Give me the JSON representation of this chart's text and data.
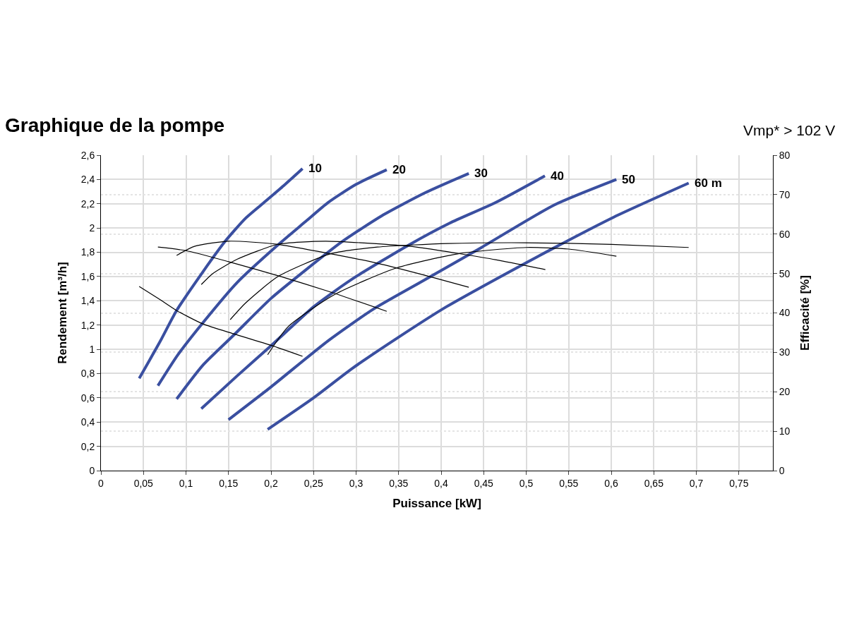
{
  "chart_data": {
    "type": "line",
    "title": "Graphique de la pompe",
    "subtitle": "Vmp* > 102 V",
    "xlabel": "Puissance [kW]",
    "ylabel": "Rendement [m³/h]",
    "y2label": "Efficacité [%]",
    "xlim": [
      0,
      0.79
    ],
    "ylim": [
      0,
      2.6
    ],
    "y2lim": [
      0,
      80
    ],
    "xticks": [
      0,
      {
        "value": 0.05,
        "label": "0,05"
      },
      {
        "value": 0.1,
        "label": "0,1"
      },
      {
        "value": 0.15,
        "label": "0,15"
      },
      {
        "value": 0.2,
        "label": "0,2"
      },
      {
        "value": 0.25,
        "label": "0,25"
      },
      {
        "value": 0.3,
        "label": "0,3"
      },
      {
        "value": 0.35,
        "label": "0,35"
      },
      {
        "value": 0.4,
        "label": "0,4"
      },
      {
        "value": 0.45,
        "label": "0,45"
      },
      {
        "value": 0.5,
        "label": "0,5"
      },
      {
        "value": 0.55,
        "label": "0,55"
      },
      {
        "value": 0.6,
        "label": "0,6"
      },
      {
        "value": 0.65,
        "label": "0,65"
      },
      {
        "value": 0.7,
        "label": "0,7"
      },
      {
        "value": 0.75,
        "label": "0,75"
      }
    ],
    "yticks": [
      0,
      {
        "value": 0.2,
        "label": "0,2"
      },
      {
        "value": 0.4,
        "label": "0,4"
      },
      {
        "value": 0.6,
        "label": "0,6"
      },
      {
        "value": 0.8,
        "label": "0,8"
      },
      1,
      {
        "value": 1.2,
        "label": "1,2"
      },
      {
        "value": 1.4,
        "label": "1,4"
      },
      {
        "value": 1.6,
        "label": "1,6"
      },
      {
        "value": 1.8,
        "label": "1,8"
      },
      2,
      {
        "value": 2.2,
        "label": "2,2"
      },
      {
        "value": 2.4,
        "label": "2,4"
      },
      {
        "value": 2.6,
        "label": "2,6"
      }
    ],
    "y2ticks": [
      0,
      10,
      20,
      30,
      40,
      50,
      60,
      70,
      80
    ],
    "grid": true,
    "marker": "none",
    "line_style": "solid",
    "series": [
      {
        "name": "10",
        "color": "#3a4fa0",
        "x": [
          0.045,
          0.07,
          0.089,
          0.12,
          0.146,
          0.17,
          0.19,
          0.215,
          0.237
        ],
        "values": [
          0.76,
          1.07,
          1.32,
          1.64,
          1.89,
          2.08,
          2.2,
          2.35,
          2.49
        ]
      },
      {
        "name": "20",
        "color": "#3a4fa0",
        "x": [
          0.067,
          0.09,
          0.12,
          0.16,
          0.208,
          0.24,
          0.267,
          0.3,
          0.336
        ],
        "values": [
          0.7,
          0.95,
          1.22,
          1.55,
          1.86,
          2.05,
          2.21,
          2.36,
          2.48
        ]
      },
      {
        "name": "30",
        "color": "#3a4fa0",
        "x": [
          0.089,
          0.12,
          0.158,
          0.2,
          0.24,
          0.283,
          0.33,
          0.381,
          0.4325
        ],
        "values": [
          0.59,
          0.87,
          1.13,
          1.42,
          1.65,
          1.885,
          2.1,
          2.29,
          2.45
        ]
      },
      {
        "name": "40",
        "color": "#3a4fa0",
        "x": [
          0.118,
          0.16,
          0.2,
          0.25,
          0.275,
          0.3,
          0.362,
          0.41,
          0.464,
          0.522
        ],
        "values": [
          0.51,
          0.78,
          1.03,
          1.35,
          1.48,
          1.6,
          1.86,
          2.04,
          2.21,
          2.43
        ]
      },
      {
        "name": "50",
        "color": "#3a4fa0",
        "x": [
          0.15,
          0.2,
          0.267,
          0.32,
          0.375,
          0.4475,
          0.533,
          0.606
        ],
        "values": [
          0.42,
          0.69,
          1.07,
          1.33,
          1.55,
          1.84,
          2.19,
          2.4
        ]
      },
      {
        "name": "60 m",
        "color": "#3a4fa0",
        "x": [
          0.196,
          0.25,
          0.295,
          0.35,
          0.406,
          0.47,
          0.531,
          0.603,
          0.691
        ],
        "values": [
          0.34,
          0.6,
          0.84,
          1.1,
          1.35,
          1.6,
          1.83,
          2.09,
          2.37
        ]
      },
      {
        "color": "#000000",
        "axis": "y2",
        "x": [
          0.045,
          0.07,
          0.089,
          0.12,
          0.156,
          0.2,
          0.237
        ],
        "values": [
          46.7,
          43.3,
          40.6,
          37.2,
          34.7,
          31.8,
          29.0
        ]
      },
      {
        "color": "#000000",
        "axis": "y2",
        "x": [
          0.067,
          0.1,
          0.15,
          0.212,
          0.267,
          0.336
        ],
        "values": [
          56.7,
          55.8,
          53.0,
          49.2,
          45.5,
          40.4
        ]
      },
      {
        "color": "#000000",
        "axis": "y2",
        "x": [
          0.089,
          0.11,
          0.15,
          0.208,
          0.26,
          0.325,
          0.38,
          0.4325
        ],
        "values": [
          54.6,
          56.9,
          58.2,
          57.4,
          55.4,
          52.6,
          49.6,
          46.5
        ]
      },
      {
        "color": "#000000",
        "axis": "y2",
        "x": [
          0.118,
          0.131,
          0.16,
          0.208,
          0.264,
          0.353,
          0.381,
          0.464,
          0.5225
        ],
        "values": [
          47.2,
          49.9,
          53.6,
          57.4,
          58.2,
          57.1,
          56.4,
          53.5,
          51.0
        ]
      },
      {
        "color": "#000000",
        "axis": "y2",
        "x": [
          0.152,
          0.17,
          0.208,
          0.27,
          0.325,
          0.408,
          0.5,
          0.6,
          0.691
        ],
        "values": [
          38.3,
          42.5,
          49.2,
          55.0,
          56.7,
          57.6,
          57.8,
          57.4,
          56.6
        ]
      },
      {
        "color": "#000000",
        "axis": "y2",
        "x": [
          0.196,
          0.22,
          0.275,
          0.3475,
          0.4225,
          0.5,
          0.55,
          0.606
        ],
        "values": [
          29.4,
          36.5,
          44.7,
          51.4,
          55.1,
          56.6,
          56.2,
          54.4
        ]
      }
    ]
  }
}
